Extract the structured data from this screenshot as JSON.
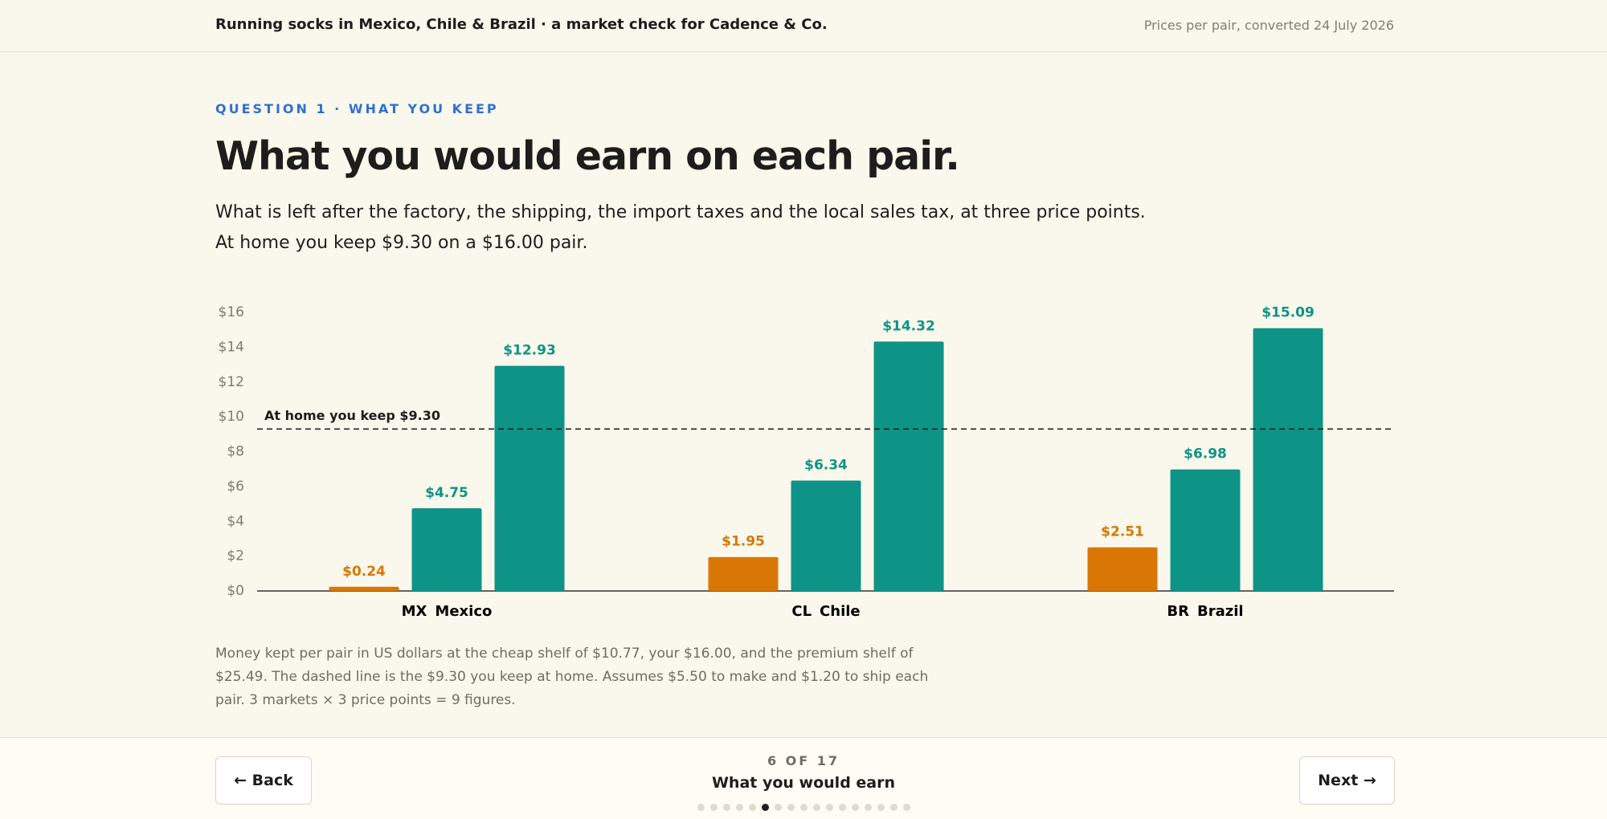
{
  "header": {
    "title": "Running socks in Mexico, Chile & Brazil · a market check for Cadence & Co.",
    "note": "Prices per pair, converted 24 July 2026"
  },
  "question": "QUESTION 1 · WHAT YOU KEEP",
  "heading": "What you would earn on each pair.",
  "intro": [
    "What is left after the factory, the shipping, the import taxes and the local sales tax, at three price points.",
    "At home you keep $9.30 on a $16.00 pair."
  ],
  "chart_data": {
    "type": "bar",
    "codes": [
      "MX",
      "CL",
      "BR"
    ],
    "categories": [
      "Mexico",
      "Chile",
      "Brazil"
    ],
    "series": [
      {
        "color": "#d97706",
        "values": [
          0.24,
          1.95,
          2.51
        ],
        "value_labels": [
          "$0.24",
          "$1.95",
          "$2.51"
        ]
      },
      {
        "color": "#0e9486",
        "values": [
          4.75,
          6.34,
          6.98
        ],
        "value_labels": [
          "$4.75",
          "$6.34",
          "$6.98"
        ]
      },
      {
        "color": "#0e9486",
        "values": [
          12.93,
          14.32,
          15.09
        ],
        "value_labels": [
          "$12.93",
          "$14.32",
          "$15.09"
        ]
      }
    ],
    "ylim": [
      0,
      16
    ],
    "yticks": [
      {
        "value": 0,
        "label": "$0"
      },
      {
        "value": 2,
        "label": "$2"
      },
      {
        "value": 4,
        "label": "$4"
      },
      {
        "value": 6,
        "label": "$6"
      },
      {
        "value": 8,
        "label": "$8"
      },
      {
        "value": 10,
        "label": "$10"
      },
      {
        "value": 12,
        "label": "$12"
      },
      {
        "value": 14,
        "label": "$14"
      },
      {
        "value": 16,
        "label": "$16"
      }
    ],
    "reference": {
      "value": 9.3,
      "label": "At home you keep $9.30"
    },
    "grid": false
  },
  "caption": "Money kept per pair in US dollars at the cheap shelf of $10.77, your $16.00, and the premium shelf of $25.49. The dashed line is the $9.30 you keep at home. Assumes $5.50 to make and $1.20 to ship each pair. 3 markets × 3 price points = 9 figures.",
  "footer": {
    "back": "← Back",
    "next": "Next →",
    "step": "6 OF 17",
    "step_title": "What you would earn",
    "current": 6,
    "total": 17
  }
}
